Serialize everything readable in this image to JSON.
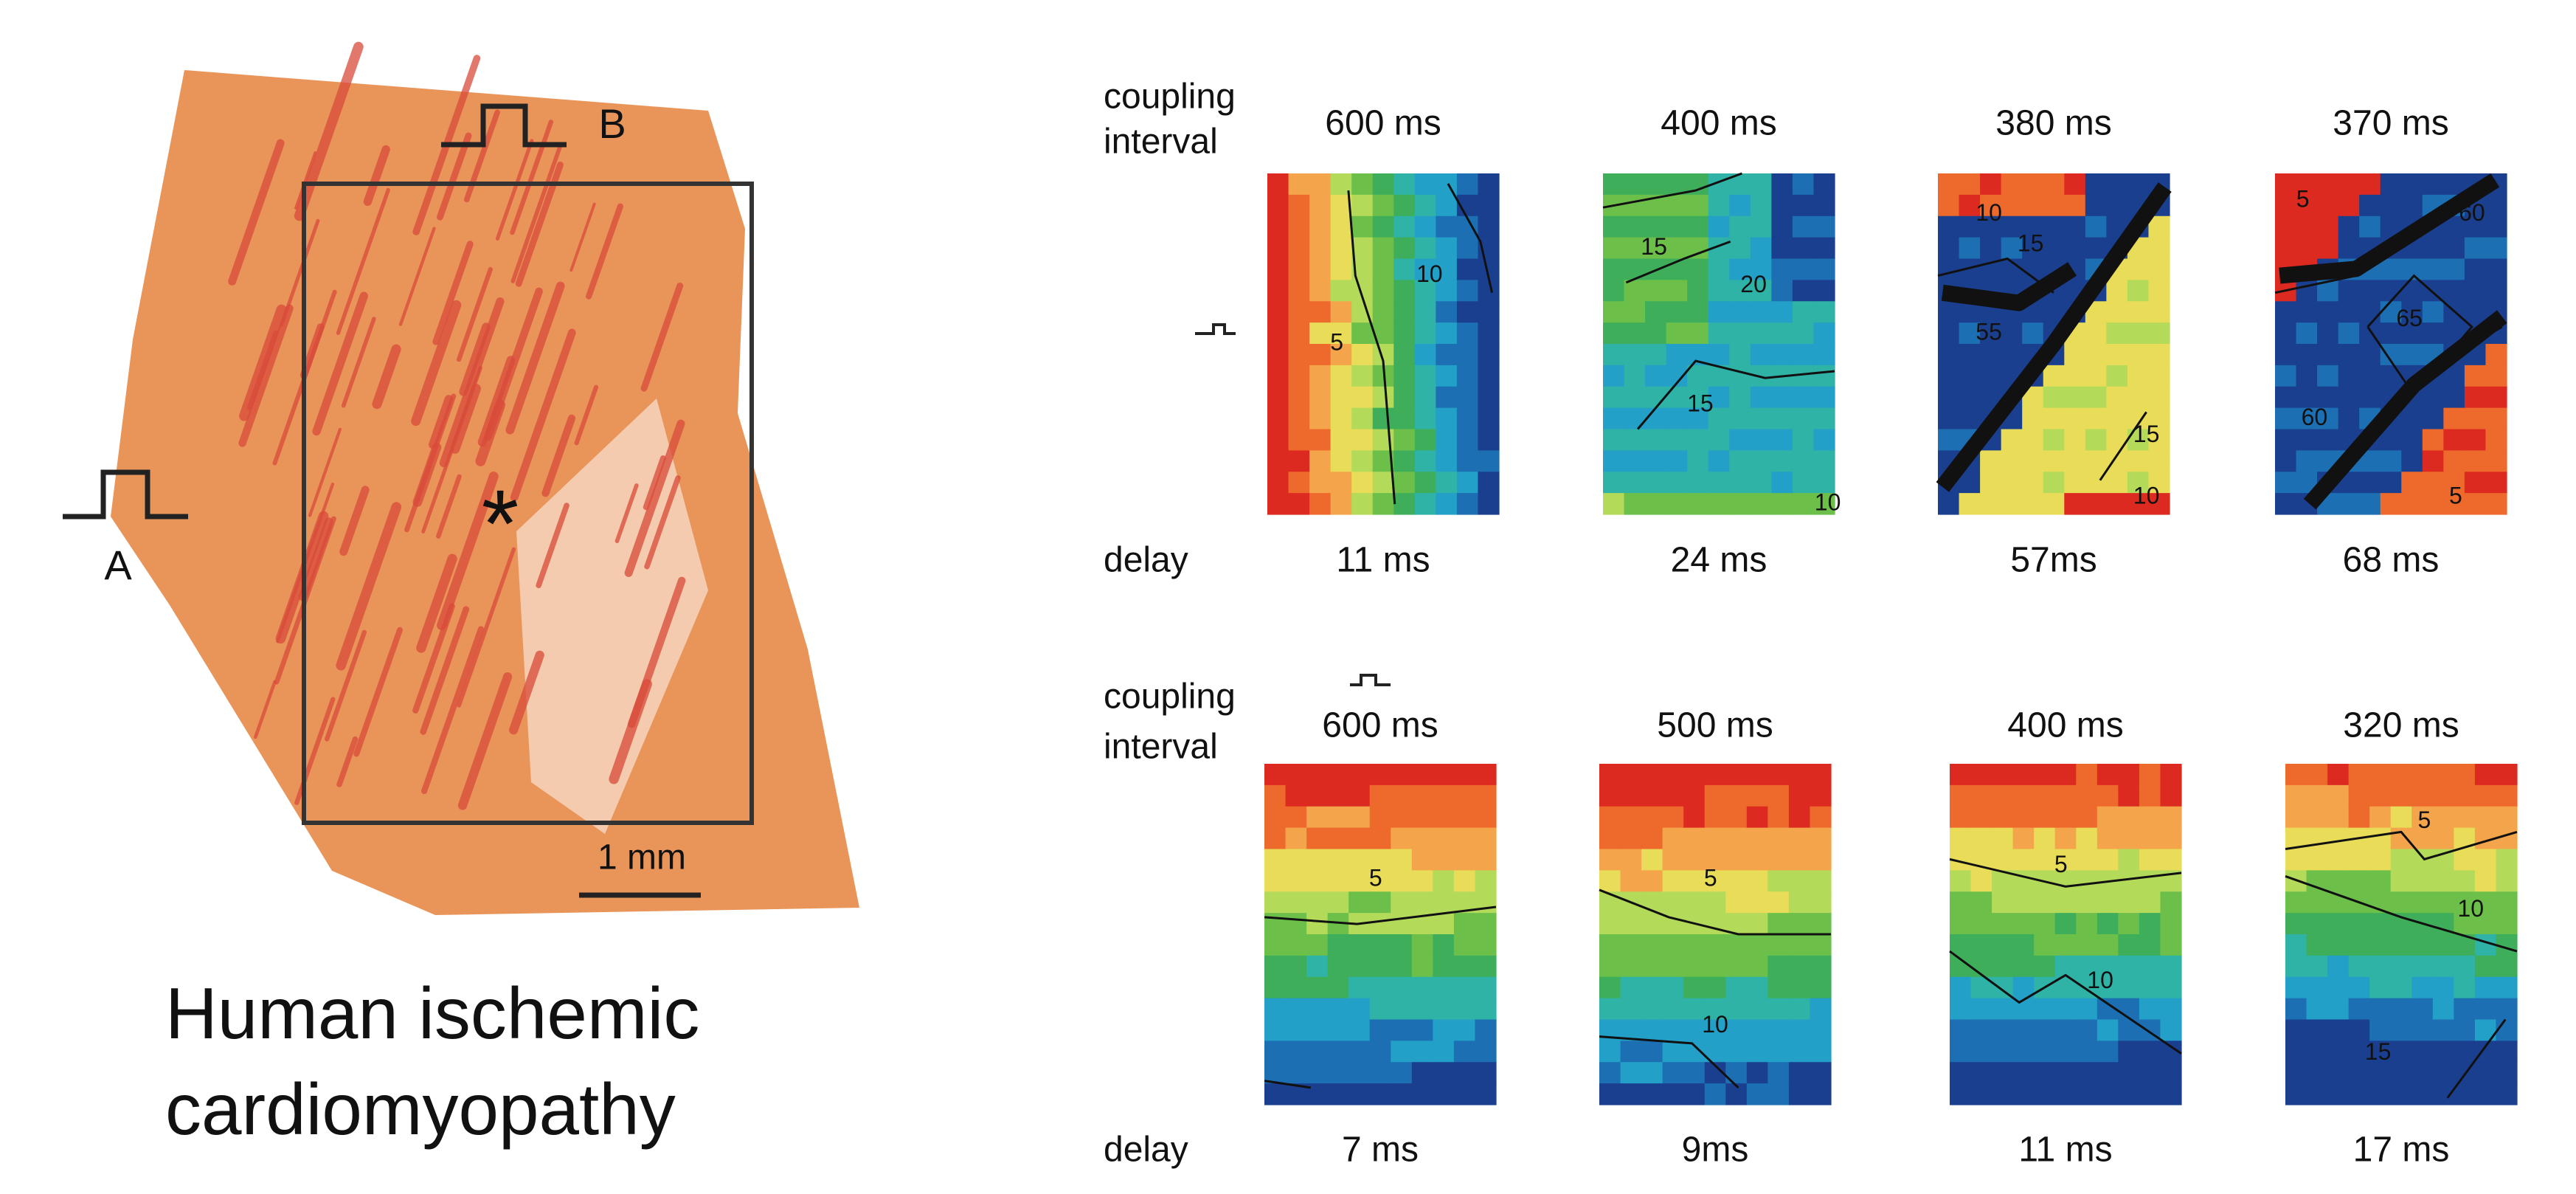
{
  "tissue": {
    "labels": {
      "a": "A",
      "b": "B",
      "star": "*"
    },
    "scale_bar": "1 mm",
    "caption": [
      "Human ischemic",
      "cardiomyopathy"
    ]
  },
  "rows": [
    {
      "coupling_label": [
        "coupling",
        "interval"
      ],
      "delay_label": "delay",
      "panels": [
        {
          "coupling": "600 ms",
          "delay": "11 ms",
          "contour_labels": [
            "10",
            "5"
          ]
        },
        {
          "coupling": "400 ms",
          "delay": "24 ms",
          "contour_labels": [
            "15",
            "20",
            "15",
            "10"
          ]
        },
        {
          "coupling": "380 ms",
          "delay": "57ms",
          "contour_labels": [
            "10",
            "15",
            "55",
            "15",
            "10"
          ]
        },
        {
          "coupling": "370 ms",
          "delay": "68 ms",
          "contour_labels": [
            "5",
            "60",
            "65",
            "60",
            "5"
          ]
        }
      ]
    },
    {
      "coupling_label": [
        "coupling",
        "interval"
      ],
      "delay_label": "delay",
      "panels": [
        {
          "coupling": "600 ms",
          "delay": "7 ms",
          "contour_labels": [
            "5"
          ]
        },
        {
          "coupling": "500 ms",
          "delay": "9ms",
          "contour_labels": [
            "5",
            "10"
          ]
        },
        {
          "coupling": "400 ms",
          "delay": "11 ms",
          "contour_labels": [
            "5",
            "10"
          ]
        },
        {
          "coupling": "320 ms",
          "delay": "17 ms",
          "contour_labels": [
            "5",
            "10",
            "15"
          ]
        }
      ]
    }
  ]
}
